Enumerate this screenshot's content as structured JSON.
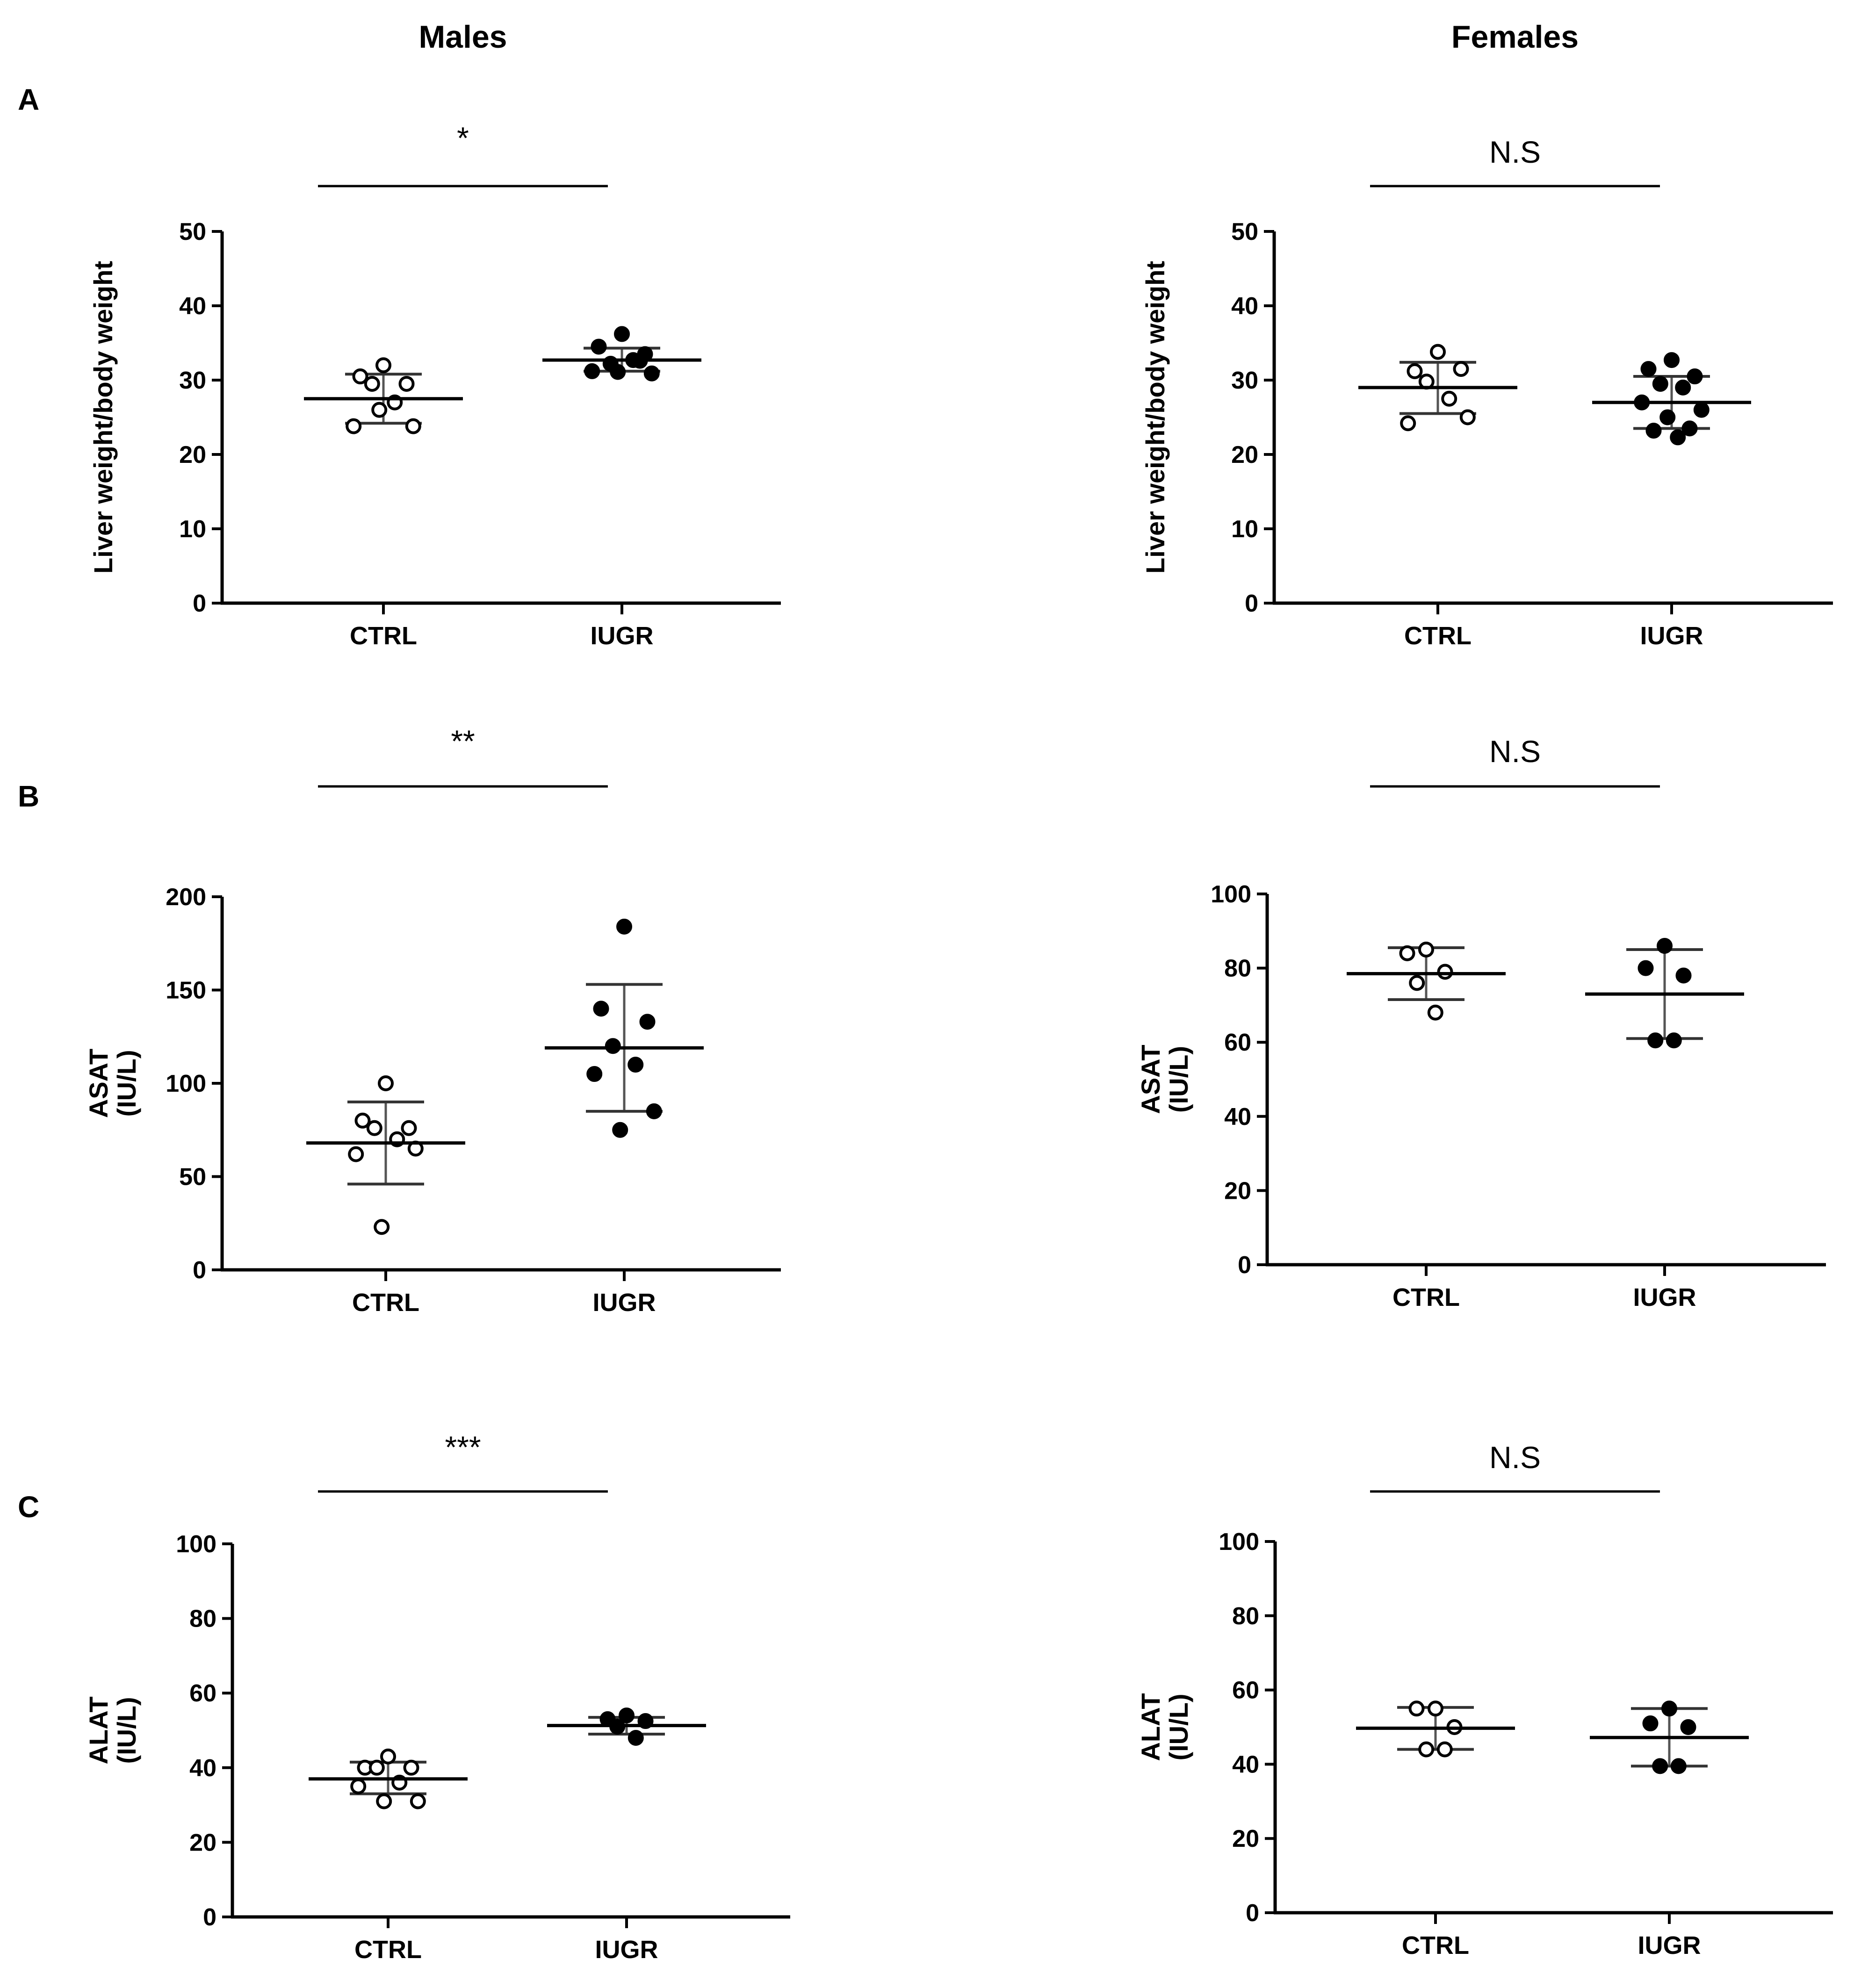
{
  "column_titles": [
    "Males",
    "Females"
  ],
  "panel_letters": [
    "A",
    "B",
    "C"
  ],
  "chart_data": [
    {
      "type": "scatter",
      "panel": "A",
      "sex": "Males",
      "ylabel": [
        "Liver weight/body weight"
      ],
      "yticks": [
        0,
        10,
        20,
        30,
        40,
        50
      ],
      "ylim": [
        0,
        50
      ],
      "categories": [
        "CTRL",
        "IUGR"
      ],
      "significance": "*",
      "groups": [
        {
          "name": "CTRL",
          "filled": false,
          "mean": 27.5,
          "err_low": 24.2,
          "err_high": 30.8,
          "points": [
            32,
            30.5,
            29.5,
            29.5,
            27,
            23.8,
            23.8,
            26
          ]
        },
        {
          "name": "IUGR",
          "filled": true,
          "mean": 32.7,
          "err_low": 31.2,
          "err_high": 34.3,
          "points": [
            36.2,
            34.5,
            33.5,
            32.2,
            32.7,
            31.2,
            30.9,
            31.1,
            32.6
          ]
        }
      ]
    },
    {
      "type": "scatter",
      "panel": "A",
      "sex": "Females",
      "ylabel": [
        "Liver weight/body weight"
      ],
      "yticks": [
        0,
        10,
        20,
        30,
        40,
        50
      ],
      "ylim": [
        0,
        50
      ],
      "categories": [
        "CTRL",
        "IUGR"
      ],
      "significance": "N.S",
      "groups": [
        {
          "name": "CTRL",
          "filled": false,
          "mean": 29,
          "err_low": 25.5,
          "err_high": 32.4,
          "points": [
            33.8,
            31.2,
            31.5,
            29.8,
            27.5,
            24.2,
            25
          ]
        },
        {
          "name": "IUGR",
          "filled": true,
          "mean": 27,
          "err_low": 23.5,
          "err_high": 30.5,
          "points": [
            32.7,
            31.5,
            30.5,
            29.5,
            29,
            27,
            26,
            25,
            23.5,
            23.2,
            22.3
          ]
        }
      ]
    },
    {
      "type": "scatter",
      "panel": "B",
      "sex": "Males",
      "ylabel": [
        "ASAT",
        "(IU/L)"
      ],
      "yticks": [
        0,
        50,
        100,
        150,
        200
      ],
      "ylim": [
        0,
        200
      ],
      "categories": [
        "CTRL",
        "IUGR"
      ],
      "significance": "**",
      "groups": [
        {
          "name": "CTRL",
          "filled": false,
          "mean": 68,
          "err_low": 46,
          "err_high": 90,
          "points": [
            100,
            80,
            76,
            76,
            70,
            62,
            65,
            23
          ]
        },
        {
          "name": "IUGR",
          "filled": true,
          "mean": 119,
          "err_low": 85,
          "err_high": 153,
          "points": [
            184,
            140,
            133,
            120,
            110,
            105,
            85,
            75
          ]
        }
      ]
    },
    {
      "type": "scatter",
      "panel": "B",
      "sex": "Females",
      "ylabel": [
        "ASAT",
        "(IU/L)"
      ],
      "yticks": [
        0,
        20,
        40,
        60,
        80,
        100
      ],
      "ylim": [
        0,
        100
      ],
      "categories": [
        "CTRL",
        "IUGR"
      ],
      "significance": "N.S",
      "groups": [
        {
          "name": "CTRL",
          "filled": false,
          "mean": 78.5,
          "err_low": 71.5,
          "err_high": 85.5,
          "points": [
            85,
            84,
            79,
            76,
            68
          ]
        },
        {
          "name": "IUGR",
          "filled": true,
          "mean": 73,
          "err_low": 61,
          "err_high": 85,
          "points": [
            86,
            80,
            78,
            60.5,
            60.5
          ]
        }
      ]
    },
    {
      "type": "scatter",
      "panel": "C",
      "sex": "Males",
      "ylabel": [
        "ALAT",
        "(IU/L)"
      ],
      "yticks": [
        0,
        20,
        40,
        60,
        80,
        100
      ],
      "ylim": [
        0,
        100
      ],
      "categories": [
        "CTRL",
        "IUGR"
      ],
      "significance": "***",
      "groups": [
        {
          "name": "CTRL",
          "filled": false,
          "mean": 37,
          "err_low": 33,
          "err_high": 41.5,
          "points": [
            43,
            40,
            40,
            40,
            36,
            35,
            31,
            31
          ]
        },
        {
          "name": "IUGR",
          "filled": true,
          "mean": 51.3,
          "err_low": 49,
          "err_high": 53.5,
          "points": [
            54,
            53,
            52.5,
            51,
            48
          ]
        }
      ]
    },
    {
      "type": "scatter",
      "panel": "C",
      "sex": "Females",
      "ylabel": [
        "ALAT",
        "(IU/L)"
      ],
      "yticks": [
        0,
        20,
        40,
        60,
        80,
        100
      ],
      "ylim": [
        0,
        100
      ],
      "categories": [
        "CTRL",
        "IUGR"
      ],
      "significance": "N.S",
      "groups": [
        {
          "name": "CTRL",
          "filled": false,
          "mean": 49.7,
          "err_low": 44,
          "err_high": 55.3,
          "points": [
            55,
            55,
            50,
            44,
            44
          ]
        },
        {
          "name": "IUGR",
          "filled": true,
          "mean": 47.2,
          "err_low": 39.5,
          "err_high": 55,
          "points": [
            55,
            51,
            50,
            39.5,
            39.5
          ]
        }
      ]
    }
  ]
}
